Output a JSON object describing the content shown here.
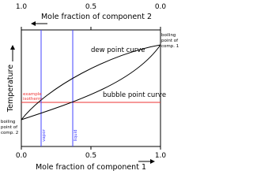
{
  "top_axis": {
    "title": "Mole fraction of component 2",
    "ticks": [
      "1.0",
      "0.5",
      "0.0"
    ]
  },
  "bottom_axis": {
    "title": "Mole fraction of component 1",
    "ticks": [
      "0.0",
      "0.5",
      "1.0"
    ]
  },
  "y_axis": {
    "title": "Temperature"
  },
  "labels": {
    "dew": "dew point curve",
    "bubble": "bubble point curve",
    "bp1": [
      "boiling",
      "point of",
      "comp. 1"
    ],
    "bp2": [
      "boiling",
      "point of",
      "comp. 2"
    ],
    "isotherm": [
      "example",
      "isotherm"
    ],
    "vapor": "vapor",
    "liquid": "liquid"
  }
}
